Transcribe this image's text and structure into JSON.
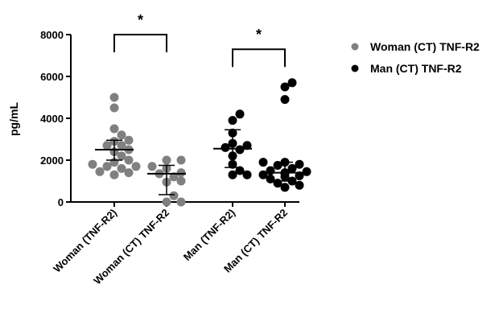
{
  "chart_data": {
    "type": "scatter",
    "ylabel": "pg/mL",
    "xlabel": "",
    "ylim": [
      0,
      8000
    ],
    "yticks": [
      0,
      2000,
      4000,
      6000,
      8000
    ],
    "ytick_labels": [
      "0",
      "2000",
      "4000",
      "6000",
      "8000"
    ],
    "categories": [
      "Woman (TNF-R2)",
      "Woman (CT) TNF-R2",
      "Man (TNF-R2)",
      "Man (CT) TNF-R2"
    ],
    "colors": {
      "gray": "#808080",
      "black": "#000000"
    },
    "groups": [
      {
        "name": "Woman (TNF-R2)",
        "color": "gray",
        "values": [
          5000,
          4500,
          3500,
          3200,
          2950,
          2900,
          2700,
          2700,
          2500,
          2400,
          2200,
          2000,
          1900,
          1800,
          1700,
          1600,
          1450,
          1400,
          1300,
          1700
        ],
        "mean": 2500,
        "err_low": 2000,
        "err_high": 2950
      },
      {
        "name": "Woman (CT) TNF-R2",
        "color": "gray",
        "values": [
          2000,
          2000,
          1700,
          1600,
          1400,
          1350,
          1200,
          1000,
          950,
          300,
          0,
          0
        ],
        "mean": 1350,
        "err_low": 350,
        "err_high": 1750
      },
      {
        "name": "Man (TNF-R2)",
        "color": "black",
        "values": [
          4200,
          3900,
          3300,
          2800,
          2700,
          2600,
          2500,
          2200,
          1800,
          1500,
          1300,
          1300
        ],
        "mean": 2550,
        "err_low": 1650,
        "err_high": 3450
      },
      {
        "name": "Man (CT) TNF-R2",
        "color": "black",
        "values": [
          5700,
          5500,
          4900,
          1900,
          1800,
          1750,
          1600,
          1500,
          1450,
          1400,
          1300,
          1250,
          1200,
          1100,
          1000,
          900,
          800,
          700,
          1900,
          1350
        ],
        "mean": 1400,
        "err_low": 1000,
        "err_high": 1900
      }
    ],
    "legend": [
      {
        "label": "Woman (CT) TNF-R2",
        "color": "gray"
      },
      {
        "label": "Man (CT) TNF-R2",
        "color": "black"
      }
    ],
    "legend_position": "top-right",
    "significance": [
      {
        "groups": [
          0,
          1
        ],
        "label": "*",
        "y": 8000
      },
      {
        "groups": [
          2,
          3
        ],
        "label": "*",
        "y": 7300
      }
    ]
  }
}
